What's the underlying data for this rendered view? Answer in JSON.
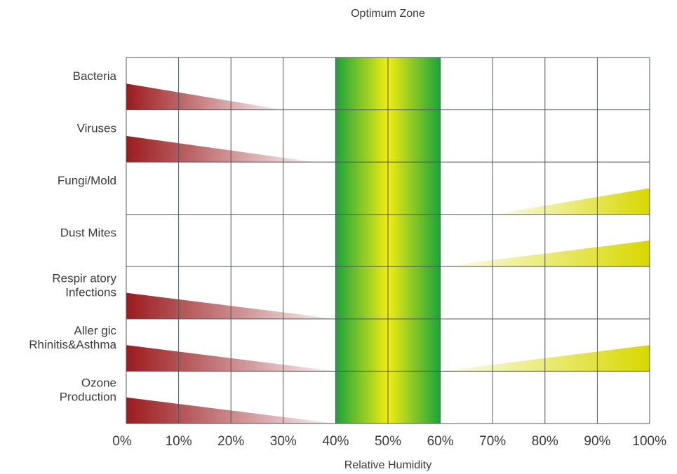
{
  "chart_data": {
    "type": "bar",
    "title": "Optimum Zone",
    "xlabel": "Relative Humidity",
    "ylabel": "",
    "xlim": [
      0,
      100
    ],
    "x_ticks": [
      "0%",
      "10%",
      "20%",
      "30%",
      "40%",
      "50%",
      "60%",
      "70%",
      "80%",
      "90%",
      "100%"
    ],
    "optimum_zone": {
      "start": 40,
      "end": 60
    },
    "categories": [
      [
        "Bacteria"
      ],
      [
        "Viruses"
      ],
      [
        "Fungi/Mold"
      ],
      [
        "Dust Mites"
      ],
      [
        "Respir atory",
        "Infections"
      ],
      [
        "Aller gic",
        "Rhinitis&Asthma"
      ],
      [
        "Ozone",
        "Production"
      ]
    ],
    "low_humidity_risk": [
      {
        "from": 0,
        "to": 30,
        "intensity": 0.5
      },
      {
        "from": 0,
        "to": 36,
        "intensity": 0.5
      },
      null,
      null,
      {
        "from": 0,
        "to": 40,
        "intensity": 0.5
      },
      {
        "from": 0,
        "to": 40,
        "intensity": 0.5
      },
      {
        "from": 0,
        "to": 40,
        "intensity": 0.5
      }
    ],
    "high_humidity_risk": [
      null,
      null,
      {
        "from": 70,
        "to": 100,
        "intensity": 0.5
      },
      {
        "from": 60,
        "to": 100,
        "intensity": 0.5
      },
      null,
      {
        "from": 60,
        "to": 100,
        "intensity": 0.5
      },
      null
    ],
    "colors": {
      "low_risk": "#9b1b1e",
      "high_risk": "#d8d800",
      "zone_edge": "#1aa33a",
      "zone_center": "#f2ec12",
      "grid": "#4f5560"
    },
    "grid": true
  }
}
